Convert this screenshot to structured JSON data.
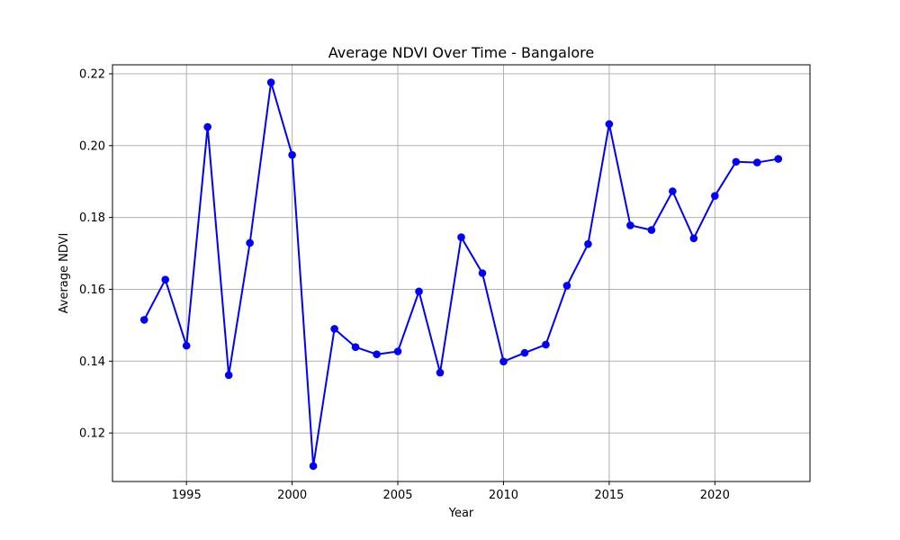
{
  "chart_data": {
    "type": "line",
    "title": "Average NDVI Over Time - Bangalore",
    "xlabel": "Year",
    "ylabel": "Average NDVI",
    "x": [
      1993,
      1994,
      1995,
      1996,
      1997,
      1998,
      1999,
      2000,
      2001,
      2002,
      2003,
      2004,
      2005,
      2006,
      2007,
      2008,
      2009,
      2010,
      2011,
      2012,
      2013,
      2014,
      2015,
      2016,
      2017,
      2018,
      2019,
      2020,
      2021,
      2022,
      2023
    ],
    "series": [
      {
        "values": [
          0.1515,
          0.1627,
          0.1443,
          0.2052,
          0.1361,
          0.1729,
          0.2176,
          0.1974,
          0.1108,
          0.149,
          0.1439,
          0.1419,
          0.1427,
          0.1594,
          0.1368,
          0.1745,
          0.1645,
          0.1399,
          0.1423,
          0.1446,
          0.161,
          0.1726,
          0.206,
          0.1778,
          0.1765,
          0.1873,
          0.1742,
          0.186,
          0.1955,
          0.1953,
          0.1963
        ],
        "color": "#0000ff",
        "marker": "circle"
      }
    ],
    "xlim": [
      1991.5,
      2024.5
    ],
    "ylim": [
      0.1065,
      0.2225
    ],
    "xticks": [
      1995,
      2000,
      2005,
      2010,
      2015,
      2020
    ],
    "yticks": [
      0.12,
      0.14,
      0.16,
      0.18,
      0.2,
      0.22
    ],
    "ytick_labels": [
      "0.12",
      "0.14",
      "0.16",
      "0.18",
      "0.20",
      "0.22"
    ],
    "grid": true,
    "grid_color": "#b0b0b0",
    "legend": false
  }
}
